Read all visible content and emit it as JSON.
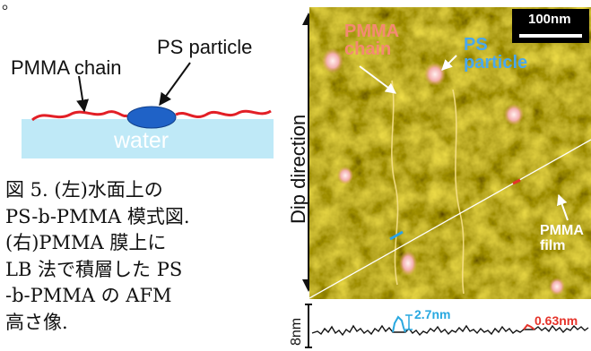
{
  "corner_mark": "。",
  "schematic": {
    "ps_label": "PS particle",
    "pmma_label": "PMMA chain",
    "water_label": "water"
  },
  "caption": {
    "lines": [
      "図 5. (左)水面上の",
      "PS-b-PMMA 模式図.",
      "(右)PMMA 膜上に",
      "LB 法で積層した PS",
      "-b-PMMA の AFM",
      "高さ像."
    ]
  },
  "afm": {
    "dip_direction_label": "Dip direction",
    "scale_bar_label": "100nm",
    "pmma_chain_label": [
      "PMMA",
      "chain"
    ],
    "ps_particle_label": [
      "PS",
      "particle"
    ],
    "pmma_film_label": [
      "PMMA",
      "film"
    ],
    "profile_axis_label": "8nm",
    "profile_value_1": "2.7nm",
    "profile_value_2": "0.63nm"
  },
  "colors": {
    "water": "#bfe9f7",
    "chain": "#e21f26",
    "particle": "#1f62c7",
    "afm_base": "#a37a00",
    "pmma_chain_text": "#f48a72",
    "ps_text": "#4aa8ec",
    "pmma_film_text": "#ffffff",
    "profile_blue": "#29a8e0",
    "profile_red": "#e5332a"
  }
}
